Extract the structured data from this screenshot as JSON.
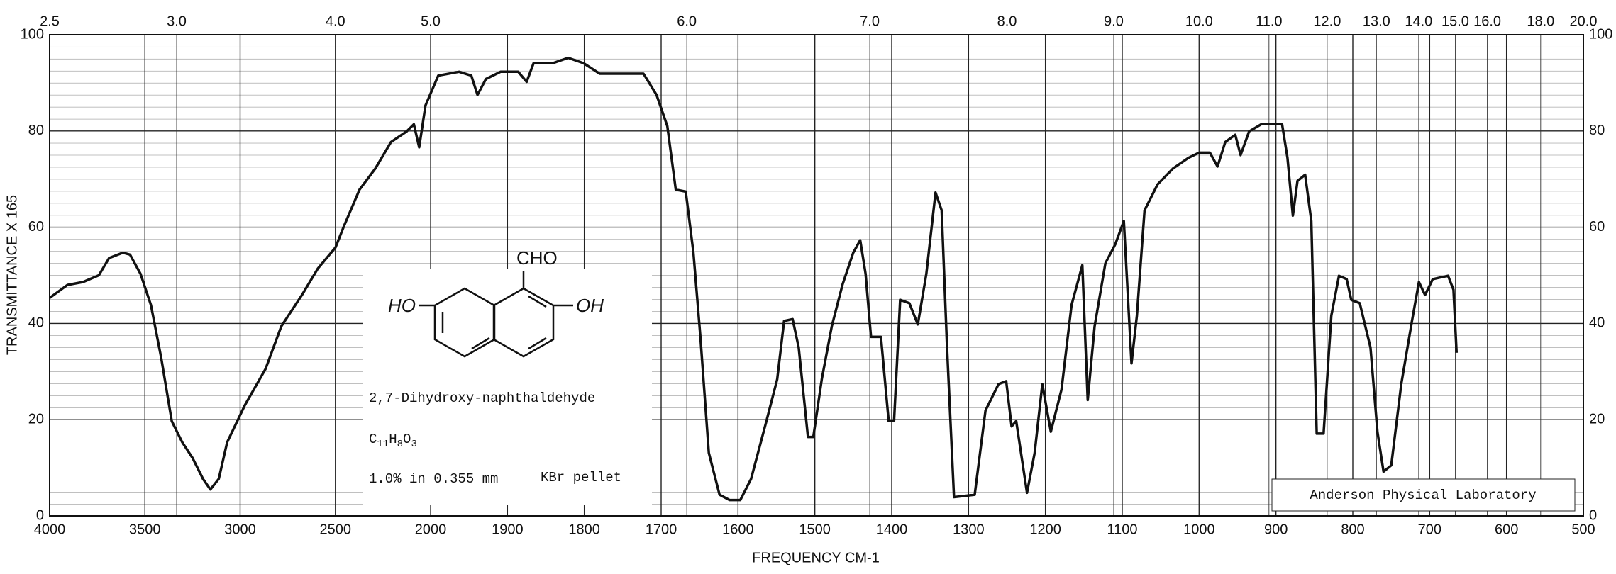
{
  "chart_data": {
    "type": "line",
    "ylabel": "TRANSMITTANCE X 165",
    "xlabel": "FREQUENCY  CM-1",
    "xscale": "piecewise",
    "xbreak": 2000,
    "xlim": [
      4000,
      500
    ],
    "xticks": [
      4000,
      3500,
      3000,
      2500,
      2000,
      1900,
      1800,
      1700,
      1600,
      1500,
      1400,
      1300,
      1200,
      1100,
      1000,
      900,
      800,
      700,
      600,
      500
    ],
    "x2ticks": [
      2.5,
      {
        "value": 3,
        "label": "3.0"
      },
      {
        "value": 4,
        "label": "4.0"
      },
      {
        "value": 5,
        "label": "5.0"
      },
      {
        "value": 6,
        "label": "6.0"
      },
      {
        "value": 7,
        "label": "7.0"
      },
      {
        "value": 8,
        "label": "8.0"
      },
      {
        "value": 9,
        "label": "9.0"
      },
      {
        "value": 10,
        "label": "10.0"
      },
      {
        "value": 11,
        "label": "11.0"
      },
      {
        "value": 12,
        "label": "12.0"
      },
      {
        "value": 13,
        "label": "13.0"
      },
      {
        "value": 14,
        "label": "14.0"
      },
      {
        "value": 15,
        "label": "15.0"
      },
      {
        "value": 16,
        "label": "16.0"
      },
      {
        "value": 18,
        "label": "18.0"
      },
      {
        "value": 20,
        "label": "20.0"
      }
    ],
    "ylim": [
      0,
      100
    ],
    "yticks": [
      0,
      20,
      40,
      60,
      80,
      100
    ],
    "grid": true,
    "color": "#111111",
    "x": [
      4000,
      3907,
      3825,
      3742,
      3688,
      3616,
      3578,
      3523,
      3468,
      3414,
      3359,
      3304,
      3249,
      3195,
      3156,
      3112,
      3068,
      2975,
      2866,
      2784,
      2674,
      2592,
      2499,
      2455,
      2373,
      2290,
      2208,
      2126,
      2088,
      2060,
      2027,
      1990,
      1963,
      1947,
      1939,
      1928,
      1909,
      1886,
      1875,
      1866,
      1841,
      1821,
      1801,
      1780,
      1746,
      1723,
      1706,
      1692,
      1681,
      1668,
      1658,
      1649,
      1638,
      1624,
      1611,
      1597,
      1583,
      1563,
      1549,
      1540,
      1529,
      1521,
      1509,
      1502,
      1491,
      1478,
      1464,
      1450,
      1441,
      1434,
      1427,
      1414,
      1404,
      1397,
      1389,
      1377,
      1366,
      1355,
      1343,
      1335,
      1328,
      1319,
      1292,
      1278,
      1261,
      1251,
      1244,
      1238,
      1224,
      1214,
      1204,
      1193,
      1179,
      1166,
      1152,
      1145,
      1136,
      1122,
      1109,
      1098,
      1088,
      1081,
      1071,
      1054,
      1034,
      1014,
      1000,
      986,
      976,
      966,
      953,
      946,
      935,
      919,
      892,
      885,
      878,
      872,
      862,
      854,
      847,
      838,
      828,
      818,
      808,
      802,
      791,
      777,
      768,
      760,
      750,
      737,
      723,
      714,
      706,
      696,
      676,
      669,
      665
    ],
    "values": [
      45.3,
      48,
      48.6,
      50,
      53.6,
      54.7,
      54.3,
      50.3,
      43.8,
      32.8,
      19.7,
      15.3,
      12,
      7.7,
      5.5,
      7.7,
      15.3,
      23,
      30.6,
      39.4,
      46,
      51.4,
      55.8,
      60.2,
      67.8,
      72.2,
      77.7,
      79.9,
      81.4,
      76.6,
      85.3,
      91.5,
      92.3,
      91.5,
      87.5,
      90.8,
      92.3,
      92.3,
      90.2,
      94.1,
      94.1,
      95.2,
      94.1,
      91.9,
      91.9,
      91.9,
      87.5,
      81,
      67.8,
      67.4,
      54.7,
      37.2,
      13.1,
      4.4,
      3.3,
      3.3,
      7.7,
      19.7,
      28.4,
      40.5,
      40.9,
      35,
      16.4,
      16.4,
      28.4,
      39.4,
      48.1,
      54.7,
      57.3,
      50.3,
      37.2,
      37.2,
      19.7,
      19.7,
      44.9,
      44.2,
      39.8,
      50.3,
      67.2,
      63.5,
      35,
      3.9,
      4.4,
      21.9,
      27.4,
      28,
      18.6,
      19.7,
      4.8,
      13.1,
      27.4,
      17.5,
      26.3,
      43.8,
      52.1,
      24.1,
      39.4,
      52.5,
      56.5,
      61.3,
      31.7,
      41.6,
      63.5,
      68.9,
      72.2,
      74.4,
      75.5,
      75.5,
      72.6,
      77.7,
      79.2,
      75,
      79.9,
      81.4,
      81.4,
      74.4,
      62.4,
      69.6,
      70.9,
      61.3,
      17.1,
      17.1,
      41.6,
      49.9,
      49.2,
      44.9,
      44.2,
      35,
      17.5,
      9.2,
      10.5,
      27.4,
      40.5,
      48.6,
      45.9,
      49.2,
      49.9,
      47,
      33.9
    ]
  },
  "annotation": {
    "structure_labels": [
      "HO",
      "CHO",
      "OH"
    ],
    "compound": "2,7-Dihydroxy-naphthaldehyde",
    "formula": [
      "C",
      "11",
      "H",
      "8",
      "O",
      "3"
    ],
    "conditions": [
      "1.0% in 0.355 mm",
      "KBr pellet"
    ],
    "laboratory": "Anderson Physical Laboratory"
  }
}
